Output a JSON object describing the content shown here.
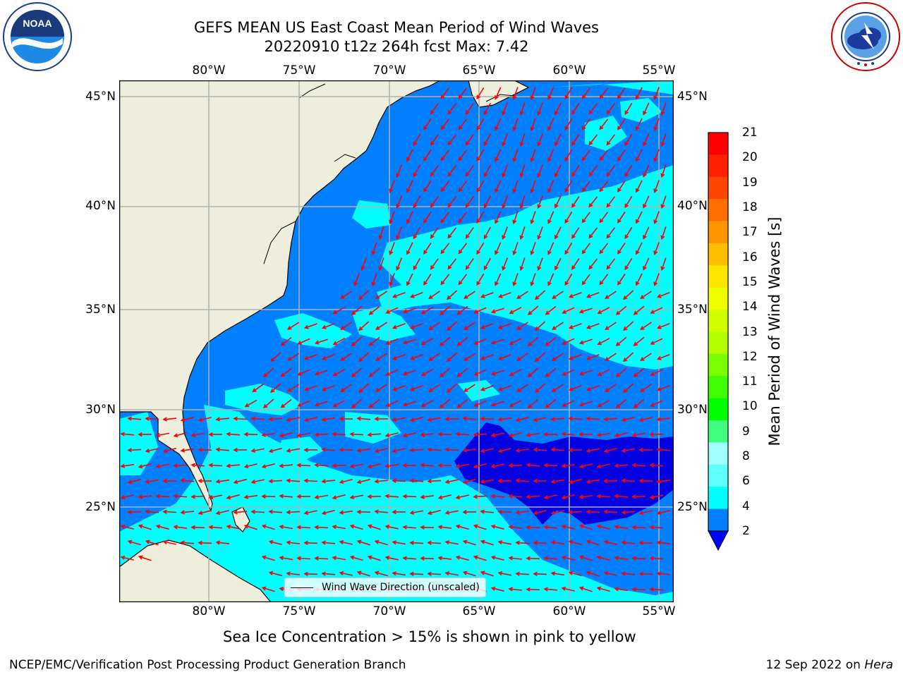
{
  "title": {
    "line1": "GEFS MEAN US East Coast Mean Period of Wind Waves",
    "line2": "20220910 t12z 264h fcst   Max: 7.42"
  },
  "logos": {
    "noaa_text": "NOAA",
    "noaa_ring": "NATIONAL OCEANIC AND ATMOSPHERIC ADMINISTRATION · U.S. DEPARTMENT OF COMMERCE",
    "nws_ring": "NATIONAL WEATHER SERVICE"
  },
  "map": {
    "lon_labels": [
      "80°W",
      "75°W",
      "70°W",
      "65°W",
      "60°W",
      "55°W"
    ],
    "lat_labels": [
      "45°N",
      "40°N",
      "35°N",
      "30°N",
      "25°N"
    ],
    "legend": "Wind Wave Direction (unscaled)",
    "colors": {
      "land": "#eeeedc",
      "ocean_2_4": "#0080ff",
      "ocean_4_6": "#00ffff",
      "ocean_lt2": "#0000e0",
      "arrows": "#ff0000",
      "grid": "#b0b0b0"
    }
  },
  "colorbar": {
    "label": "Mean Period of Wind Waves [s]",
    "ticks": [
      "21",
      "20",
      "19",
      "18",
      "17",
      "16",
      "15",
      "14",
      "13",
      "12",
      "11",
      "10",
      "9",
      "8",
      "6",
      "4",
      "2"
    ],
    "colors": [
      "#ff0000",
      "#ff2000",
      "#ff4600",
      "#ff6e00",
      "#ff9600",
      "#ffbe00",
      "#ffe600",
      "#f0ff00",
      "#d2ff00",
      "#b4ff00",
      "#78ff00",
      "#3cff00",
      "#00ff00",
      "#40ff80",
      "#a0ffff",
      "#60ffff",
      "#00ffff",
      "#0080ff"
    ],
    "under_color": "#0000ff"
  },
  "footnote": "Sea Ice Concentration > 15% is shown in pink to yellow",
  "footer": {
    "left": "NCEP/EMC/Verification Post Processing Product Generation Branch",
    "date": "12 Sep 2022 on",
    "machine": "Hera"
  }
}
